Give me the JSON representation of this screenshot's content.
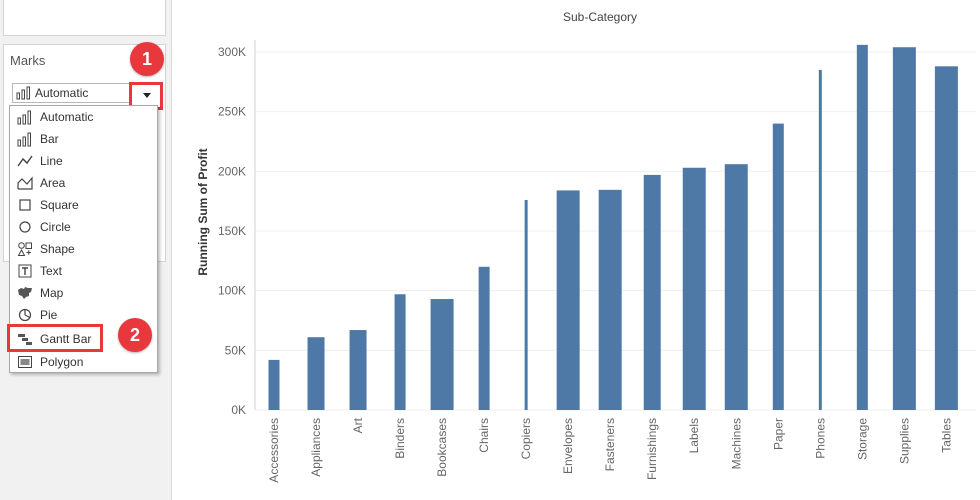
{
  "marks_panel": {
    "title": "Marks",
    "selected": "Automatic",
    "menu": [
      {
        "label": "Automatic",
        "icon": "automatic-bars-icon"
      },
      {
        "label": "Bar",
        "icon": "bar-icon"
      },
      {
        "label": "Line",
        "icon": "line-icon"
      },
      {
        "label": "Area",
        "icon": "area-icon"
      },
      {
        "label": "Square",
        "icon": "square-icon"
      },
      {
        "label": "Circle",
        "icon": "circle-icon"
      },
      {
        "label": "Shape",
        "icon": "shape-icon"
      },
      {
        "label": "Text",
        "icon": "text-icon"
      },
      {
        "label": "Map",
        "icon": "map-icon"
      },
      {
        "label": "Pie",
        "icon": "pie-icon"
      },
      {
        "label": "Gantt Bar",
        "icon": "gantt-bar-icon"
      },
      {
        "label": "Polygon",
        "icon": "polygon-icon"
      }
    ]
  },
  "annotations": {
    "step1": "1",
    "step2": "2",
    "color": "#e8383d"
  },
  "chart_data": {
    "type": "bar",
    "title": "Sub-Category",
    "ylabel": "Running Sum of Profit",
    "xlabel": "",
    "ylim": [
      0,
      300000
    ],
    "yticks": [
      "0K",
      "50K",
      "100K",
      "150K",
      "200K",
      "250K",
      "300K"
    ],
    "bar_color": "#4e79a7",
    "categories": [
      "Accessories",
      "Appliances",
      "Art",
      "Binders",
      "Bookcases",
      "Chairs",
      "Copiers",
      "Envelopes",
      "Fasteners",
      "Furnishings",
      "Labels",
      "Machines",
      "Paper",
      "Phones",
      "Storage",
      "Supplies",
      "Tables"
    ],
    "values": [
      42000,
      61000,
      67000,
      97000,
      93000,
      120000,
      176000,
      184000,
      184500,
      197000,
      203000,
      206000,
      240000,
      285000,
      306000,
      304000,
      288000
    ],
    "bar_widths": [
      "narrow",
      "medium",
      "medium",
      "narrow",
      "wide",
      "narrow",
      "hairline",
      "wide",
      "wide",
      "medium",
      "wide",
      "wide",
      "narrow",
      "hairline",
      "narrow",
      "wide",
      "wide"
    ]
  }
}
